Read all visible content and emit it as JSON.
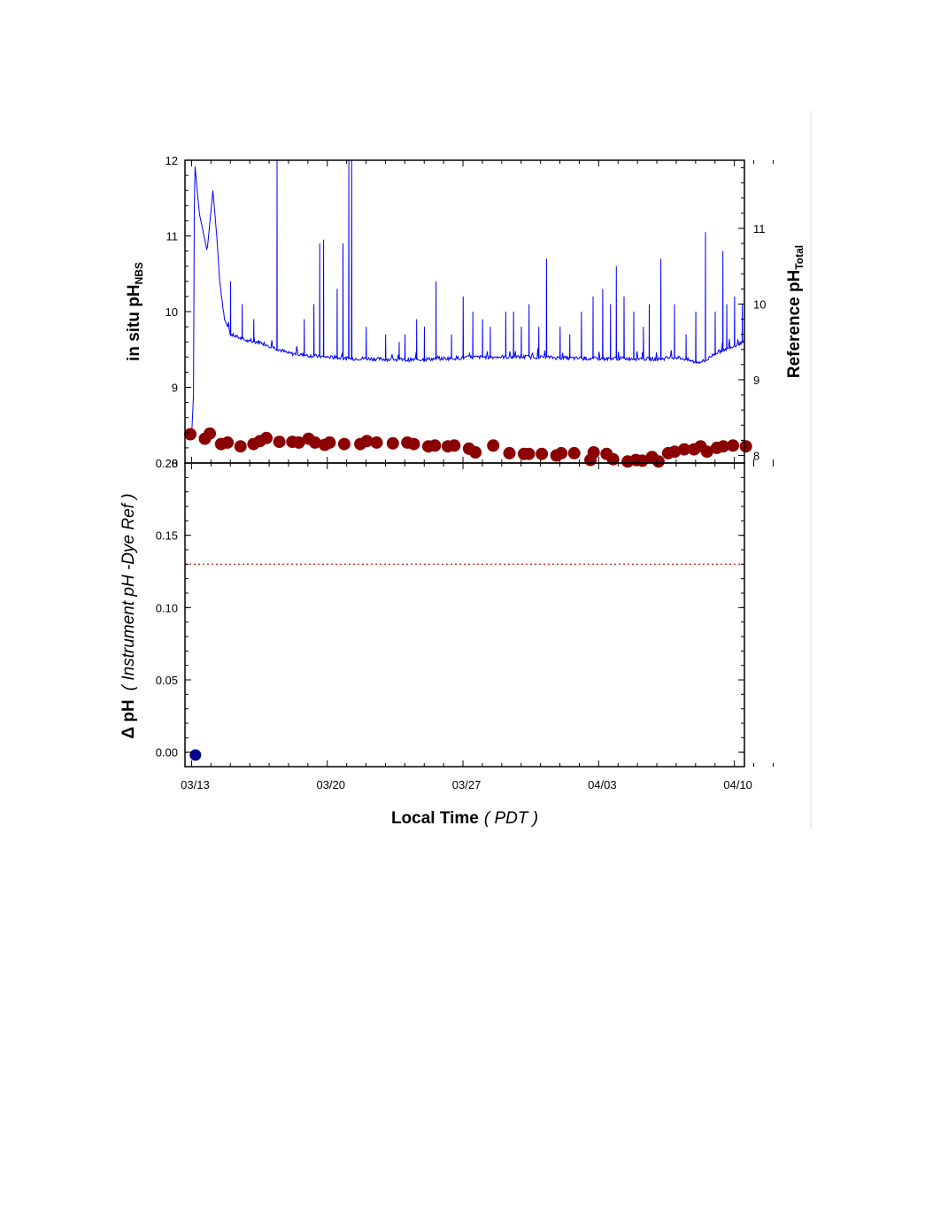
{
  "colors": {
    "instrument_line": "#0000ff",
    "reference_points": "#8b0000",
    "delta_point": "#00008b",
    "dotted_line": "#c0392b",
    "frame": "#000000",
    "page_divider": "#d9d9d9"
  },
  "chart_data": [
    {
      "type": "line",
      "panel": "top",
      "ylabel_left": {
        "prefix": "in situ pH",
        "subscript": "NBS"
      },
      "ylabel_right": {
        "prefix": "Reference pH",
        "subscript": "Total"
      },
      "ylim_left": [
        8,
        12
      ],
      "yticks_left": [
        8,
        9,
        10,
        11,
        12
      ],
      "yticks_left_labels": [
        "8",
        "9",
        "10",
        "11",
        "12"
      ],
      "ylim_right": [
        7.9,
        11.9
      ],
      "yticks_right": [
        8,
        9,
        10,
        11
      ],
      "yticks_right_labels": [
        "8",
        "9",
        "10",
        "11"
      ],
      "x_days_range": [
        0,
        30.2
      ],
      "series": [
        {
          "kind": "line",
          "axis": "left",
          "color": "#0000ff",
          "baseline": [
            [
              -0.3,
              8.4
            ],
            [
              0.0,
              8.35
            ],
            [
              0.1,
              8.9
            ],
            [
              0.15,
              12
            ],
            [
              0.4,
              11.3
            ],
            [
              0.8,
              10.8
            ],
            [
              1.1,
              11.6
            ],
            [
              1.3,
              11.0
            ],
            [
              1.45,
              10.4
            ],
            [
              1.7,
              9.9
            ],
            [
              2.0,
              9.7
            ],
            [
              2.5,
              9.65
            ],
            [
              3.0,
              9.6
            ],
            [
              3.5,
              9.6
            ],
            [
              4.0,
              9.55
            ],
            [
              4.5,
              9.5
            ],
            [
              5.0,
              9.45
            ],
            [
              6.0,
              9.42
            ],
            [
              7.0,
              9.4
            ],
            [
              8.0,
              9.38
            ],
            [
              9.0,
              9.38
            ],
            [
              10.0,
              9.37
            ],
            [
              11.0,
              9.36
            ],
            [
              12.0,
              9.37
            ],
            [
              13.0,
              9.38
            ],
            [
              14.0,
              9.39
            ],
            [
              15.0,
              9.4
            ],
            [
              16.0,
              9.4
            ],
            [
              17.0,
              9.4
            ],
            [
              18.0,
              9.4
            ],
            [
              19.0,
              9.39
            ],
            [
              20.0,
              9.38
            ],
            [
              21.0,
              9.38
            ],
            [
              22.0,
              9.38
            ],
            [
              23.0,
              9.38
            ],
            [
              24.0,
              9.37
            ],
            [
              25.0,
              9.4
            ],
            [
              25.5,
              9.37
            ],
            [
              26.0,
              9.33
            ],
            [
              26.5,
              9.35
            ],
            [
              27.0,
              9.45
            ],
            [
              28.0,
              9.55
            ],
            [
              29.0,
              9.65
            ],
            [
              29.5,
              9.7
            ],
            [
              29.9,
              9.75
            ],
            [
              30.05,
              9.55
            ],
            [
              30.15,
              9.5
            ],
            [
              30.18,
              12
            ]
          ],
          "spikes": [
            [
              2.0,
              10.4
            ],
            [
              2.6,
              10.1
            ],
            [
              3.2,
              9.9
            ],
            [
              4.4,
              12
            ],
            [
              5.8,
              9.9
            ],
            [
              6.3,
              10.1
            ],
            [
              6.6,
              10.9
            ],
            [
              6.8,
              10.95
            ],
            [
              7.5,
              10.3
            ],
            [
              7.8,
              10.9
            ],
            [
              8.1,
              12
            ],
            [
              8.25,
              12
            ],
            [
              9.0,
              9.8
            ],
            [
              10.0,
              9.7
            ],
            [
              10.7,
              9.6
            ],
            [
              11.0,
              9.7
            ],
            [
              11.6,
              9.9
            ],
            [
              12.0,
              9.8
            ],
            [
              12.6,
              10.4
            ],
            [
              13.4,
              9.7
            ],
            [
              14.0,
              10.2
            ],
            [
              14.5,
              10.0
            ],
            [
              15.0,
              9.9
            ],
            [
              15.4,
              9.8
            ],
            [
              16.2,
              10.0
            ],
            [
              16.6,
              10.0
            ],
            [
              17.0,
              9.8
            ],
            [
              17.4,
              10.1
            ],
            [
              17.9,
              9.8
            ],
            [
              18.3,
              10.7
            ],
            [
              19.0,
              9.8
            ],
            [
              19.5,
              9.7
            ],
            [
              20.1,
              10.0
            ],
            [
              20.7,
              10.2
            ],
            [
              21.2,
              10.3
            ],
            [
              21.6,
              10.1
            ],
            [
              21.9,
              10.6
            ],
            [
              22.3,
              10.2
            ],
            [
              22.8,
              10.0
            ],
            [
              23.3,
              9.8
            ],
            [
              23.6,
              10.1
            ],
            [
              24.2,
              10.7
            ],
            [
              24.9,
              10.1
            ],
            [
              25.5,
              9.7
            ],
            [
              26.0,
              10.0
            ],
            [
              26.5,
              11.05
            ],
            [
              27.0,
              10.0
            ],
            [
              27.4,
              10.8
            ],
            [
              27.6,
              10.1
            ],
            [
              28.0,
              10.2
            ],
            [
              28.4,
              10.1
            ],
            [
              28.9,
              9.8
            ],
            [
              29.3,
              9.9
            ],
            [
              29.8,
              10.05
            ],
            [
              30.0,
              9.9
            ]
          ]
        },
        {
          "kind": "scatter",
          "axis": "right",
          "color": "#8b0000",
          "points": [
            [
              -0.3,
              8.28
            ],
            [
              0.6,
              8.22
            ],
            [
              0.9,
              8.29
            ],
            [
              1.6,
              8.15
            ],
            [
              2.0,
              8.17
            ],
            [
              2.8,
              8.12
            ],
            [
              3.6,
              8.15
            ],
            [
              4.0,
              8.19
            ],
            [
              4.4,
              8.23
            ],
            [
              5.2,
              8.18
            ],
            [
              6.0,
              8.18
            ],
            [
              6.4,
              8.17
            ],
            [
              7.0,
              8.22
            ],
            [
              7.4,
              8.17
            ],
            [
              8.0,
              8.14
            ],
            [
              8.3,
              8.17
            ],
            [
              9.2,
              8.15
            ],
            [
              10.2,
              8.15
            ],
            [
              10.6,
              8.19
            ],
            [
              11.2,
              8.17
            ],
            [
              12.2,
              8.16
            ],
            [
              13.1,
              8.17
            ],
            [
              13.5,
              8.15
            ],
            [
              14.4,
              8.12
            ],
            [
              14.8,
              8.13
            ],
            [
              15.6,
              8.12
            ],
            [
              16.0,
              8.13
            ],
            [
              16.9,
              8.09
            ],
            [
              17.3,
              8.04
            ],
            [
              18.4,
              8.13
            ],
            [
              19.4,
              8.03
            ],
            [
              20.3,
              8.02
            ],
            [
              20.6,
              8.02
            ],
            [
              21.4,
              8.02
            ],
            [
              22.3,
              8.0
            ],
            [
              22.6,
              8.03
            ],
            [
              23.4,
              8.03
            ],
            [
              24.4,
              7.94
            ],
            [
              24.6,
              8.04
            ],
            [
              25.4,
              8.02
            ],
            [
              25.8,
              7.95
            ],
            [
              26.7,
              7.92
            ],
            [
              27.2,
              7.94
            ],
            [
              27.6,
              7.93
            ],
            [
              28.2,
              7.98
            ],
            [
              28.6,
              7.92
            ],
            [
              29.2,
              8.03
            ],
            [
              29.6,
              8.05
            ],
            [
              30.2,
              8.08
            ],
            [
              30.8,
              8.08
            ],
            [
              31.2,
              8.12
            ],
            [
              31.6,
              8.05
            ],
            [
              32.2,
              8.1
            ],
            [
              32.6,
              8.12
            ],
            [
              33.2,
              8.13
            ],
            [
              34.0,
              8.12
            ]
          ]
        }
      ]
    },
    {
      "type": "scatter",
      "panel": "bottom",
      "ylabel": {
        "prefix": "Δ pH",
        "italic": "( Instrument pH -Dye Ref )"
      },
      "xlabel": {
        "main": "Local Time",
        "italic": "PDT"
      },
      "ylim": [
        -0.01,
        0.2
      ],
      "yticks": [
        0.0,
        0.05,
        0.1,
        0.15,
        0.2
      ],
      "yticks_labels": [
        "0.00",
        "0.05",
        "0.10",
        "0.15",
        "0.20"
      ],
      "x_days_range": [
        0,
        30.2
      ],
      "xticks": [
        0,
        7,
        14,
        21,
        28
      ],
      "xtick_labels": [
        "03/13",
        "03/20",
        "03/27",
        "04/03",
        "04/10"
      ],
      "reference_line": {
        "y": 0.13,
        "style": "dotted",
        "color": "#c0392b"
      },
      "series": [
        {
          "kind": "scatter",
          "color": "#00008b",
          "points": [
            [
              0.2,
              -0.002
            ]
          ]
        }
      ]
    }
  ]
}
